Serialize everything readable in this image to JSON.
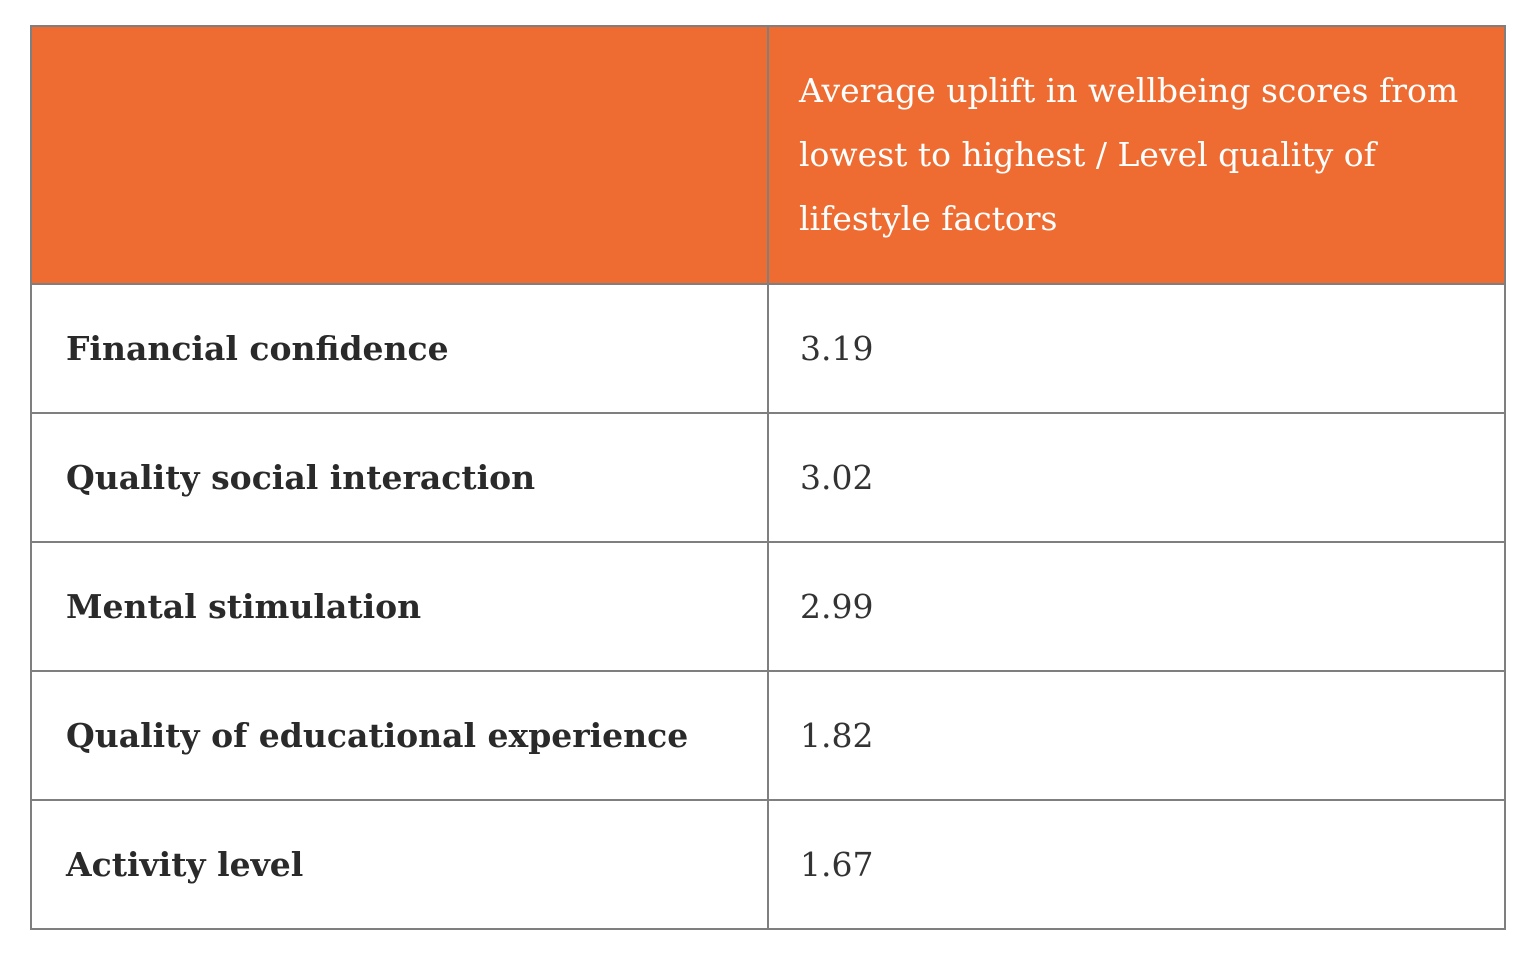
{
  "colors": {
    "header_bg": "#ee6c31",
    "header_text": "#ffffff",
    "border": "#7f7f7f",
    "body_text": "#2b2b2b"
  },
  "table": {
    "header": {
      "left": "",
      "right": "Average uplift in wellbeing scores from lowest to highest / Level quality of lifestyle factors"
    },
    "rows": [
      {
        "factor": "Financial confidence",
        "value": "3.19"
      },
      {
        "factor": "Quality social interaction",
        "value": "3.02"
      },
      {
        "factor": "Mental stimulation",
        "value": "2.99"
      },
      {
        "factor": "Quality of educational experience",
        "value": "1.82"
      },
      {
        "factor": "Activity level",
        "value": "1.67"
      }
    ]
  }
}
